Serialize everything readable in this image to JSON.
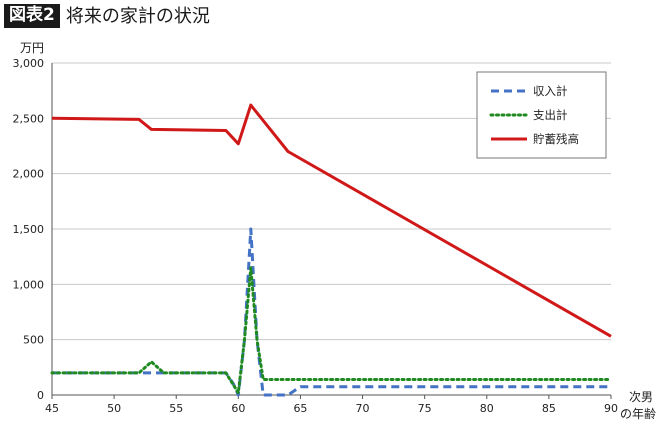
{
  "figure": {
    "badge": "図表2",
    "title": "将来の家計の状況"
  },
  "chart_data": {
    "type": "line",
    "ylabel": "万円",
    "xlabel_lines": [
      "次男",
      "の年齢"
    ],
    "xlim": [
      45,
      90
    ],
    "ylim": [
      0,
      3000
    ],
    "x_ticks": [
      45,
      50,
      55,
      60,
      65,
      70,
      75,
      80,
      85,
      90
    ],
    "y_ticks": [
      0,
      500,
      1000,
      1500,
      2000,
      2500,
      3000
    ],
    "y_tick_labels": [
      "0",
      "500",
      "1,000",
      "1,500",
      "2,000",
      "2,500",
      "3,000"
    ],
    "grid": "horizontal",
    "legend_position": "top-right",
    "series": [
      {
        "name": "収入計",
        "color": "#4472C4",
        "style": "dashed",
        "points": [
          [
            45,
            200
          ],
          [
            59,
            200
          ],
          [
            59.6,
            100
          ],
          [
            60,
            0
          ],
          [
            60.5,
            500
          ],
          [
            61,
            1500
          ],
          [
            61.5,
            500
          ],
          [
            62,
            0
          ],
          [
            64,
            0
          ],
          [
            65,
            75
          ],
          [
            90,
            75
          ]
        ]
      },
      {
        "name": "支出計",
        "color": "#1F8A1F",
        "style": "dotted",
        "points": [
          [
            45,
            200
          ],
          [
            52,
            200
          ],
          [
            53,
            300
          ],
          [
            54,
            200
          ],
          [
            59,
            200
          ],
          [
            60,
            20
          ],
          [
            60.5,
            500
          ],
          [
            61,
            1150
          ],
          [
            61.5,
            500
          ],
          [
            62,
            140
          ],
          [
            90,
            140
          ]
        ]
      },
      {
        "name": "貯蓄残高",
        "color": "#D01818",
        "style": "solid",
        "points": [
          [
            45,
            2500
          ],
          [
            52,
            2490
          ],
          [
            53,
            2400
          ],
          [
            59,
            2390
          ],
          [
            60,
            2270
          ],
          [
            61,
            2620
          ],
          [
            64,
            2200
          ],
          [
            90,
            530
          ]
        ]
      }
    ]
  }
}
